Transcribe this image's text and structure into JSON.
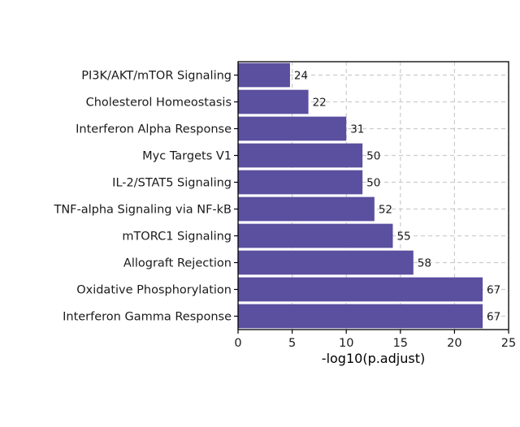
{
  "chart_data": {
    "type": "bar",
    "orientation": "horizontal",
    "categories": [
      "PI3K/AKT/mTOR Signaling",
      "Cholesterol Homeostasis",
      "Interferon Alpha Response",
      "Myc Targets V1",
      "IL-2/STAT5 Signaling",
      "TNF-alpha Signaling via NF-kB",
      "mTORC1 Signaling",
      "Allograft Rejection",
      "Oxidative Phosphorylation",
      "Interferon Gamma Response"
    ],
    "values": [
      4.8,
      6.5,
      10.0,
      11.5,
      11.5,
      12.6,
      14.3,
      16.2,
      22.6,
      22.6
    ],
    "data_labels": [
      "24",
      "22",
      "31",
      "50",
      "50",
      "52",
      "55",
      "58",
      "67",
      "67"
    ],
    "xlabel": "-log10(p.adjust)",
    "ylabel": "",
    "xlim": [
      0,
      25
    ],
    "xticks": [
      "0",
      "5",
      "10",
      "15",
      "20",
      "25"
    ],
    "grid": true,
    "colors": {
      "bar": "#5b4fa0",
      "grid": "#cccccc",
      "frame": "#000000"
    }
  }
}
